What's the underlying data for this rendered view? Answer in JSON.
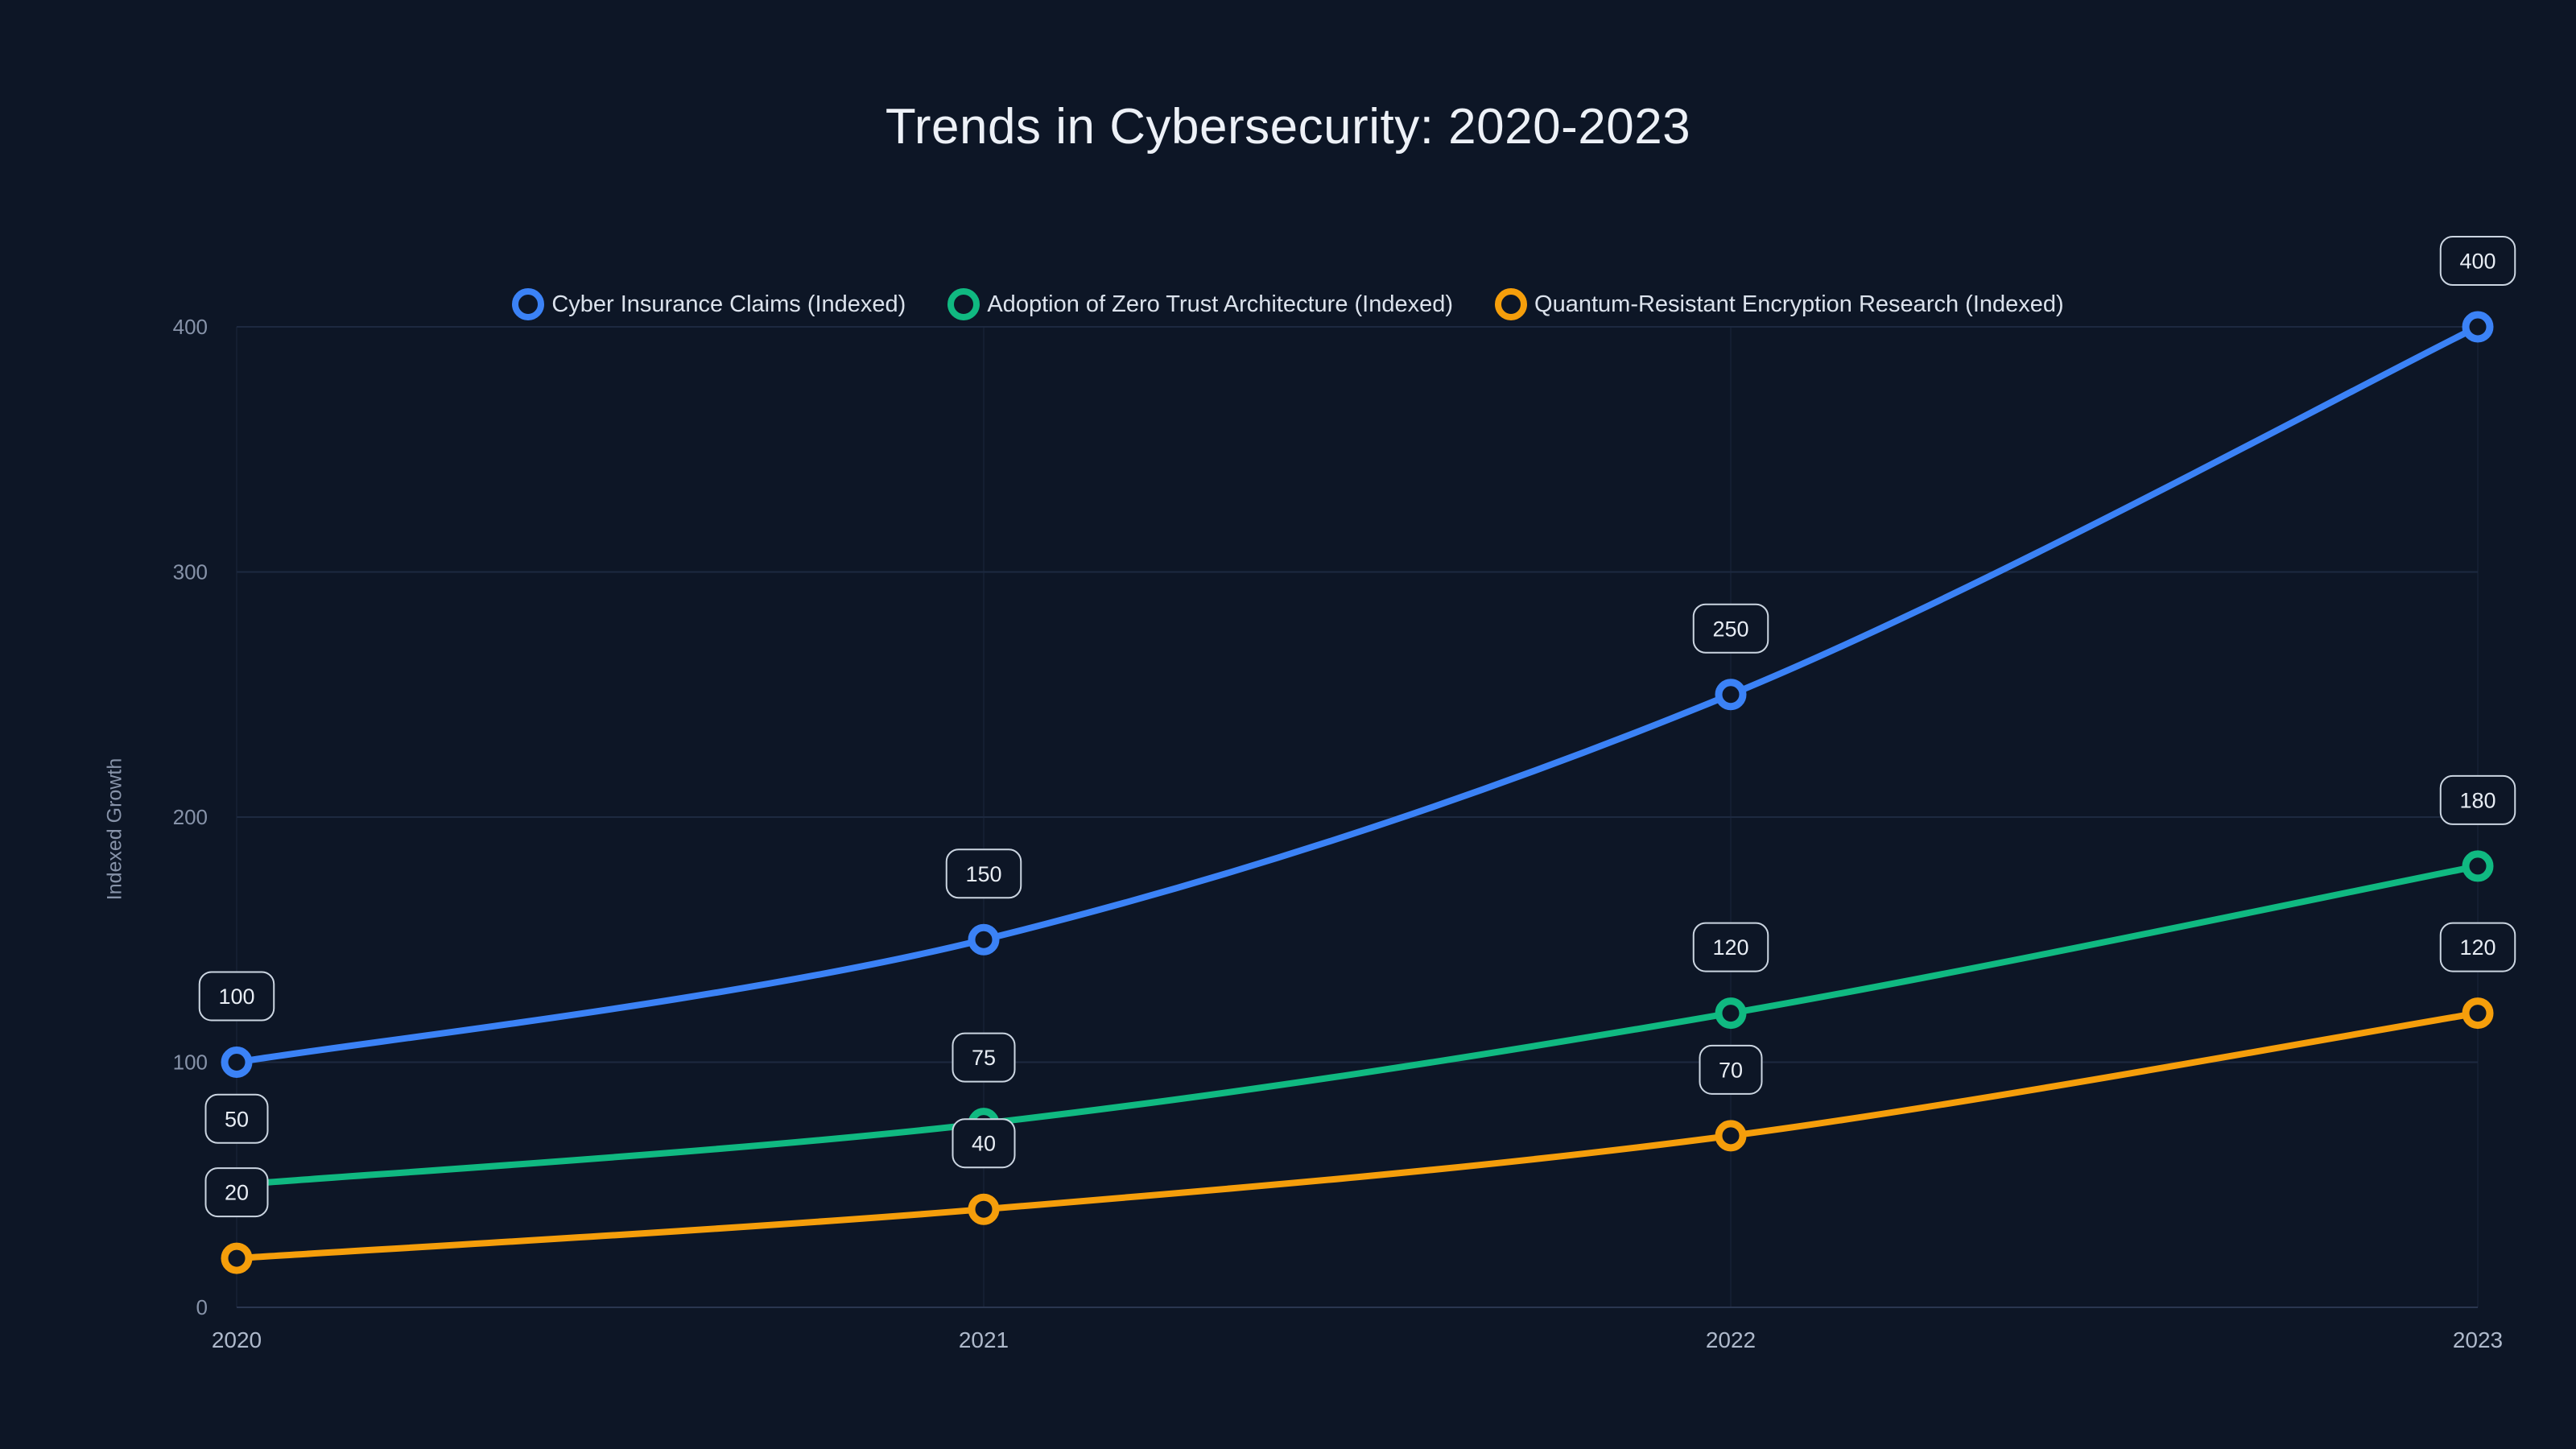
{
  "chart_data": {
    "type": "line",
    "title": "Trends in Cybersecurity: 2020-2023",
    "xlabel": "",
    "ylabel": "Indexed Growth",
    "categories": [
      "2020",
      "2021",
      "2022",
      "2023"
    ],
    "series": [
      {
        "name": "Cyber Insurance Claims (Indexed)",
        "color": "#3b82f6",
        "values": [
          100,
          150,
          250,
          400
        ]
      },
      {
        "name": "Adoption of Zero Trust Architecture (Indexed)",
        "color": "#10b981",
        "values": [
          50,
          75,
          120,
          180
        ]
      },
      {
        "name": "Quantum-Resistant Encryption Research (Indexed)",
        "color": "#f59e0b",
        "values": [
          20,
          40,
          70,
          120
        ]
      }
    ],
    "ylim": [
      0,
      400
    ],
    "yticks": [
      0,
      100,
      200,
      300,
      400
    ],
    "grid": true,
    "legend_position": "top",
    "data_labels": true,
    "marker_style": "open-circle",
    "line_style": "smooth"
  },
  "colors": {
    "background": "#0d1626",
    "grid": "#1d2940",
    "axis": "#2a3650",
    "ytick_text": "#8793a9",
    "xtick_text": "#aeb9cb",
    "title_text": "#edf1f7",
    "legend_text": "#dbe2ec",
    "label_text": "#e8edf4",
    "label_border": "#cbd5e1"
  }
}
